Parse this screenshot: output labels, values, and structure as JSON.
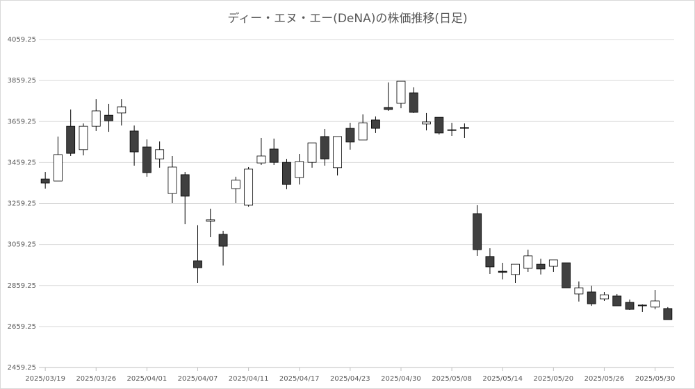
{
  "chart_data": {
    "type": "candlestick",
    "title": "ディー・エヌ・エー(DeNA)の株価推移(日足)",
    "categories": [
      "2025/03/19",
      null,
      null,
      null,
      "2025/03/26",
      null,
      null,
      null,
      "2025/04/01",
      null,
      null,
      null,
      "2025/04/07",
      null,
      null,
      null,
      "2025/04/11",
      null,
      null,
      null,
      "2025/04/17",
      null,
      null,
      null,
      "2025/04/23",
      null,
      null,
      null,
      "2025/04/30",
      null,
      null,
      null,
      "2025/05/08",
      null,
      null,
      null,
      "2025/05/14",
      null,
      null,
      null,
      "2025/05/20",
      null,
      null,
      null,
      "2025/05/26",
      null,
      null,
      null,
      "2025/05/30",
      null
    ],
    "open": [
      3379,
      3369,
      3636,
      3522,
      3636,
      3690,
      3701,
      3613,
      3535,
      3477,
      3308,
      3400,
      2980,
      3173,
      3109,
      3332,
      3251,
      3457,
      3525,
      3460,
      3386,
      3460,
      3586,
      3434,
      3626,
      3569,
      3667,
      3728,
      3748,
      3799,
      3647,
      3680,
      3619,
      3630,
      3210,
      3001,
      2929,
      2913,
      2943,
      2963,
      2953,
      2970,
      2818,
      2828,
      2794,
      2808,
      2777,
      2764,
      2754,
      2747
    ],
    "high": [
      3413,
      3586,
      3718,
      3650,
      3768,
      3745,
      3768,
      3640,
      3572,
      3562,
      3491,
      3413,
      3153,
      3234,
      3126,
      3390,
      3437,
      3579,
      3576,
      3477,
      3501,
      3555,
      3623,
      3586,
      3653,
      3694,
      3684,
      3850,
      3856,
      3826,
      3701,
      3680,
      3653,
      3650,
      3251,
      3041,
      2970,
      2963,
      3034,
      2990,
      2984,
      2970,
      2879,
      2858,
      2828,
      2818,
      2791,
      2767,
      2838,
      2754
    ],
    "low": [
      3332,
      3369,
      3491,
      3494,
      3613,
      3609,
      3640,
      3444,
      3390,
      3434,
      3261,
      3159,
      2872,
      3095,
      2957,
      3261,
      3244,
      3447,
      3447,
      3329,
      3352,
      3434,
      3444,
      3396,
      3522,
      3569,
      3603,
      3711,
      3724,
      3701,
      3616,
      3596,
      3589,
      3579,
      3004,
      2916,
      2889,
      2872,
      2926,
      2913,
      2926,
      2848,
      2781,
      2760,
      2784,
      2760,
      2740,
      2730,
      2743,
      2693
    ],
    "close": [
      3359,
      3498,
      3504,
      3636,
      3711,
      3663,
      3731,
      3511,
      3410,
      3522,
      3437,
      3295,
      2946,
      3180,
      3051,
      3373,
      3427,
      3491,
      3460,
      3352,
      3464,
      3555,
      3477,
      3586,
      3559,
      3653,
      3626,
      3718,
      3856,
      3704,
      3657,
      3603,
      3616,
      3626,
      3034,
      2950,
      2923,
      2963,
      3004,
      2940,
      2984,
      2848,
      2848,
      2770,
      2814,
      2760,
      2743,
      2760,
      2784,
      2693
    ],
    "up_color": "#ffffff",
    "down_color": "#404040",
    "ylim": [
      2459.25,
      4059.25
    ],
    "yticks": [
      2459.25,
      2659.25,
      2859.25,
      3059.25,
      3259.25,
      3459.25,
      3659.25,
      3859.25,
      4059.25
    ],
    "grid": true
  }
}
